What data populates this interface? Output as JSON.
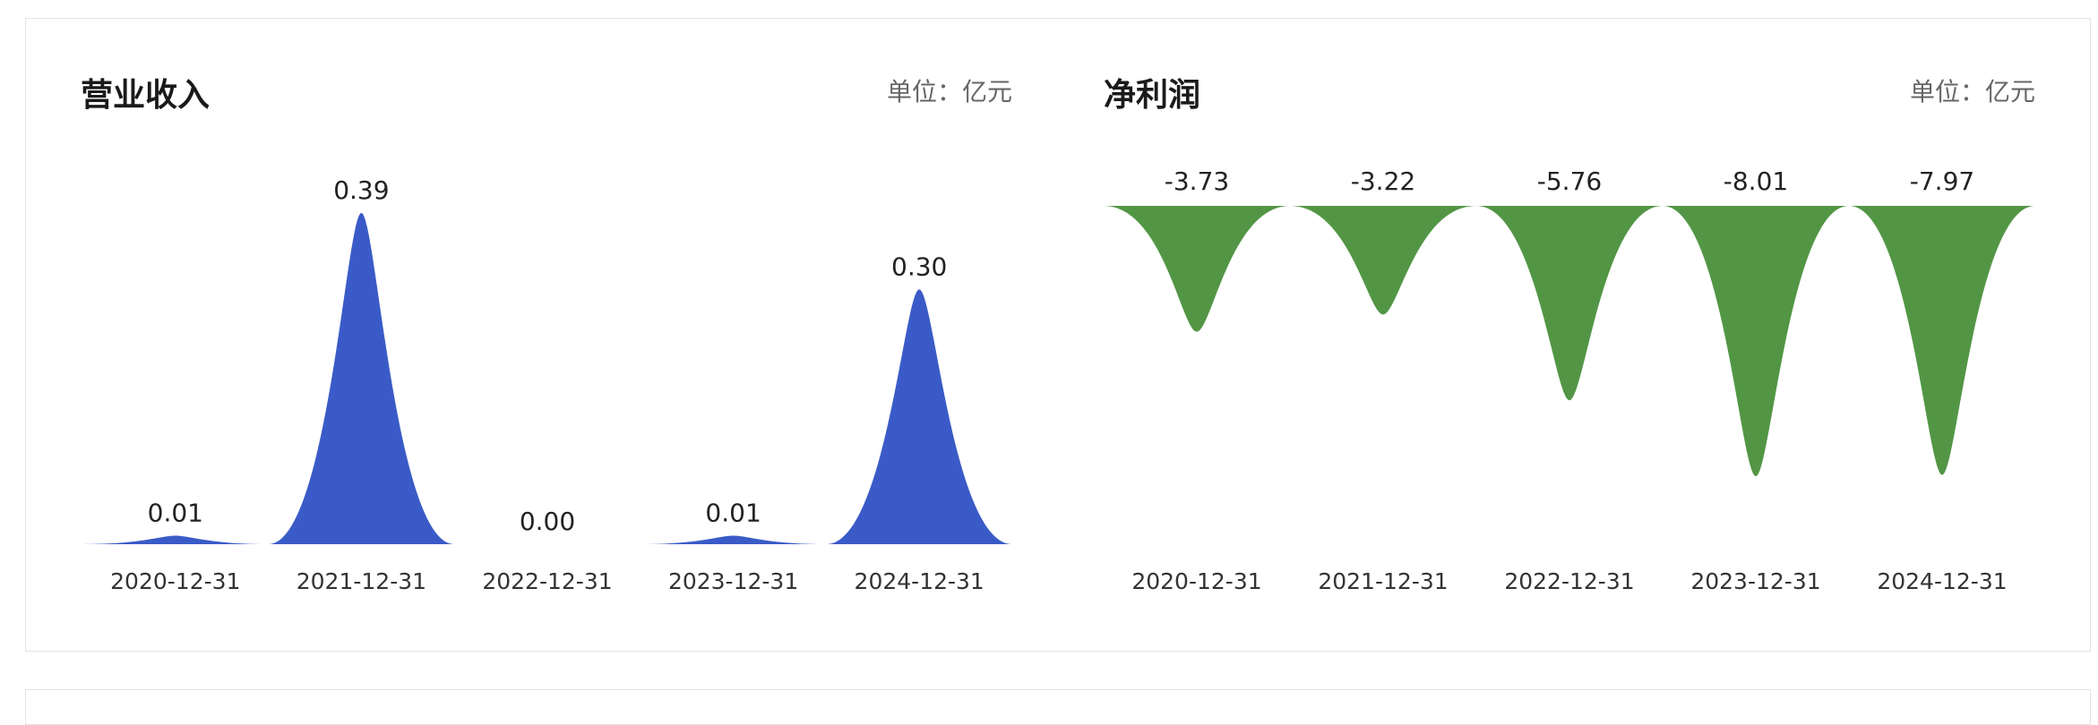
{
  "chart_data": [
    {
      "type": "area",
      "title": "营业收入",
      "unit": "单位：亿元",
      "categories": [
        "2020-12-31",
        "2021-12-31",
        "2022-12-31",
        "2023-12-31",
        "2024-12-31"
      ],
      "values": [
        0.01,
        0.39,
        0.0,
        0.01,
        0.3
      ],
      "value_labels": [
        "0.01",
        "0.39",
        "0.00",
        "0.01",
        "0.30"
      ],
      "color": "#3a5bc7",
      "direction": "up"
    },
    {
      "type": "area",
      "title": "净利润",
      "unit": "单位：亿元",
      "categories": [
        "2020-12-31",
        "2021-12-31",
        "2022-12-31",
        "2023-12-31",
        "2024-12-31"
      ],
      "values": [
        -3.73,
        -3.22,
        -5.76,
        -8.01,
        -7.97
      ],
      "value_labels": [
        "-3.73",
        "-3.22",
        "-5.76",
        "-8.01",
        "-7.97"
      ],
      "color": "#529645",
      "direction": "down"
    }
  ]
}
